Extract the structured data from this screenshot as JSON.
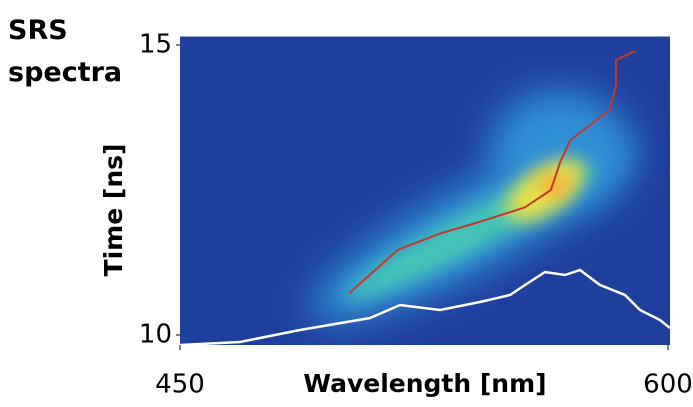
{
  "chart_data": {
    "type": "line",
    "title": "SRS spectra",
    "x_label": "Wavelength  [nm]",
    "y_label": "Time  [ns]",
    "xlim": [
      450,
      600
    ],
    "xticks": [
      450,
      600
    ],
    "ylim": [
      10,
      15
    ],
    "yticks": [
      10,
      15
    ],
    "series": [
      {
        "color": "#c0392b",
        "x": [
          502,
          517,
          530,
          542,
          556,
          564,
          567,
          570,
          582,
          584,
          584,
          590
        ],
        "values": [
          10.72,
          11.47,
          11.75,
          11.95,
          12.2,
          12.5,
          13.0,
          13.36,
          13.88,
          14.3,
          14.74,
          14.9
        ]
      }
    ]
  }
}
